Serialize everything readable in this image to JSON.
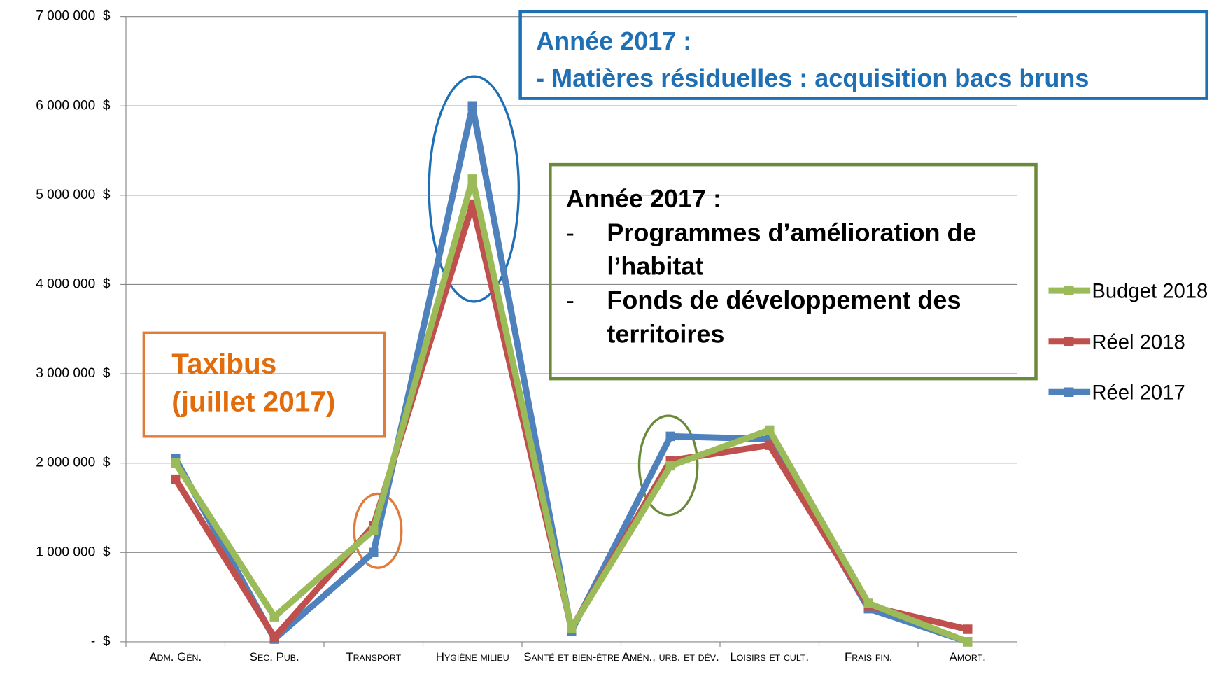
{
  "chart_data": {
    "type": "line",
    "categories": [
      "Adm. Gén.",
      "Sec. Pub.",
      "Transport",
      "Hygiène milieu",
      "Santé et bien-être",
      "Amén., urb. et dév.",
      "Loisirs et cult.",
      "Frais fin.",
      "Amort."
    ],
    "series": [
      {
        "name": "Réel 2017",
        "color": "#4f81bd",
        "values": [
          2050000,
          30000,
          1000000,
          6000000,
          120000,
          2300000,
          2270000,
          370000,
          0
        ]
      },
      {
        "name": "Réel 2018",
        "color": "#c0504d",
        "values": [
          1820000,
          50000,
          1300000,
          4900000,
          150000,
          2030000,
          2200000,
          400000,
          140000
        ]
      },
      {
        "name": "Budget 2018",
        "color": "#9bbb59",
        "values": [
          2000000,
          280000,
          1250000,
          5180000,
          150000,
          1970000,
          2370000,
          430000,
          0
        ]
      }
    ],
    "ylim": [
      0,
      7000000
    ],
    "yticks": [
      {
        "value": 0,
        "label": "-  $"
      },
      {
        "value": 1000000,
        "label": "1 000 000  $"
      },
      {
        "value": 2000000,
        "label": "2 000 000  $"
      },
      {
        "value": 3000000,
        "label": "3 000 000  $"
      },
      {
        "value": 4000000,
        "label": "4 000 000  $"
      },
      {
        "value": 5000000,
        "label": "5 000 000  $"
      },
      {
        "value": 6000000,
        "label": "6 000 000  $"
      },
      {
        "value": 7000000,
        "label": "7 000 000  $"
      }
    ],
    "grid": true,
    "legend": "right",
    "annotations": [
      {
        "heading": "Année 2017 :",
        "items": [
          "- Matières résiduelles : acquisition bacs bruns"
        ]
      },
      {
        "heading": "Année 2017 :",
        "items": [
          "Programmes d’amélioration de l’habitat",
          "Fonds de développement des territoires"
        ]
      },
      {
        "heading": "Taxibus",
        "items": [
          "(juillet 2017)"
        ]
      }
    ]
  }
}
